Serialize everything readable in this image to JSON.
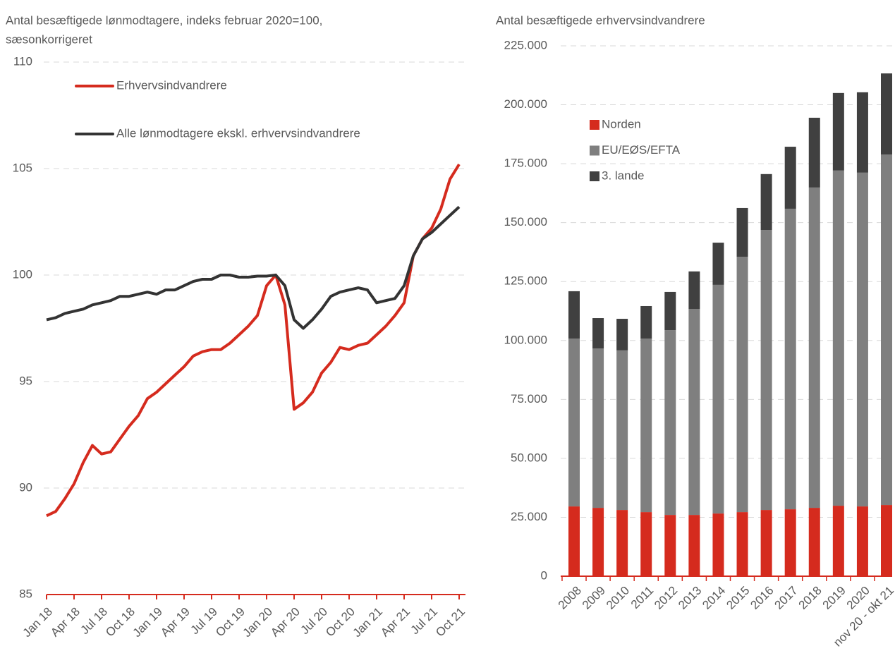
{
  "chart_data": [
    {
      "type": "line",
      "title": [
        "Antal besæftigede lønmodtagere, indeks februar 2020=100,",
        "sæsonkorrigeret"
      ],
      "categories": [
        "Jan 18",
        null,
        null,
        "Apr 18",
        null,
        null,
        "Jul 18",
        null,
        null,
        "Oct 18",
        null,
        null,
        "Jan 19",
        null,
        null,
        "Apr 19",
        null,
        null,
        "Jul 19",
        null,
        null,
        "Oct 19",
        null,
        null,
        "Jan 20",
        null,
        null,
        "Apr 20",
        null,
        null,
        "Jul 20",
        null,
        null,
        "Oct 20",
        null,
        null,
        "Jan 21",
        null,
        null,
        "Apr 21",
        null,
        null,
        "Jul 21",
        null,
        null,
        "Oct 21"
      ],
      "series": [
        {
          "name": "Erhvervsindvandrere",
          "color": "#d52b1e",
          "values": [
            88.7,
            88.9,
            89.5,
            90.2,
            91.2,
            92.0,
            91.6,
            91.7,
            92.3,
            92.9,
            93.4,
            94.2,
            94.5,
            94.9,
            95.3,
            95.7,
            96.2,
            96.4,
            96.5,
            96.5,
            96.8,
            97.2,
            97.6,
            98.1,
            99.5,
            100.0,
            98.6,
            93.7,
            94.0,
            94.5,
            95.4,
            95.9,
            96.6,
            96.5,
            96.7,
            96.8,
            97.2,
            97.6,
            98.1,
            98.7,
            100.9,
            101.7,
            102.2,
            103.1,
            104.5,
            105.2
          ]
        },
        {
          "name": "Alle lønmodtagere ekskl. erhvervsindvandrere",
          "color": "#333333",
          "values": [
            97.9,
            98.0,
            98.2,
            98.3,
            98.4,
            98.6,
            98.7,
            98.8,
            99.0,
            99.0,
            99.1,
            99.2,
            99.1,
            99.3,
            99.3,
            99.5,
            99.7,
            99.8,
            99.8,
            100.0,
            100.0,
            99.9,
            99.9,
            99.95,
            99.95,
            100.0,
            99.5,
            97.9,
            97.5,
            97.9,
            98.4,
            99.0,
            99.2,
            99.3,
            99.4,
            99.3,
            98.7,
            98.8,
            98.9,
            99.5,
            100.9,
            101.7,
            102.0,
            102.4,
            102.8,
            103.2
          ]
        }
      ],
      "ylim": [
        85,
        110
      ],
      "yticks": [
        85,
        90,
        95,
        100,
        105,
        110
      ],
      "grid": true,
      "axis_color": "#d52b1e"
    },
    {
      "type": "stacked_bar",
      "title": "Antal besæftigede erhvervsindvandrere",
      "categories": [
        "2008",
        "2009",
        "2010",
        "2011",
        "2012",
        "2013",
        "2014",
        "2015",
        "2016",
        "2017",
        "2018",
        "2019",
        "2020",
        "nov 20 - okt 21"
      ],
      "series": [
        {
          "name": "Norden",
          "color": "#d52b1e",
          "values": [
            29600,
            29000,
            28100,
            27200,
            26000,
            26000,
            26600,
            27200,
            28100,
            28400,
            29000,
            29900,
            29600,
            30200
          ]
        },
        {
          "name": "EU/EØS/EFTA",
          "color": "#7f7f7f",
          "values": [
            71200,
            67600,
            67700,
            73600,
            78400,
            87400,
            97000,
            108300,
            118800,
            127500,
            135900,
            142200,
            141600,
            148700
          ]
        },
        {
          "name": "3. lande",
          "color": "#404040",
          "values": [
            20100,
            12900,
            13400,
            13800,
            16200,
            15900,
            17900,
            20700,
            23700,
            26300,
            29600,
            32900,
            34100,
            34400
          ]
        }
      ],
      "ylim": [
        0,
        225000
      ],
      "yticks": [
        0,
        {
          "value": 25000,
          "label": "25.000"
        },
        {
          "value": 50000,
          "label": "50.000"
        },
        {
          "value": 75000,
          "label": "75.000"
        },
        {
          "value": 100000,
          "label": "100.000"
        },
        {
          "value": 125000,
          "label": "125.000"
        },
        {
          "value": 150000,
          "label": "150.000"
        },
        {
          "value": 175000,
          "label": "175.000"
        },
        {
          "value": 200000,
          "label": "200.000"
        },
        {
          "value": 225000,
          "label": "225.000"
        }
      ],
      "grid": true,
      "axis_color": "#d52b1e"
    }
  ]
}
